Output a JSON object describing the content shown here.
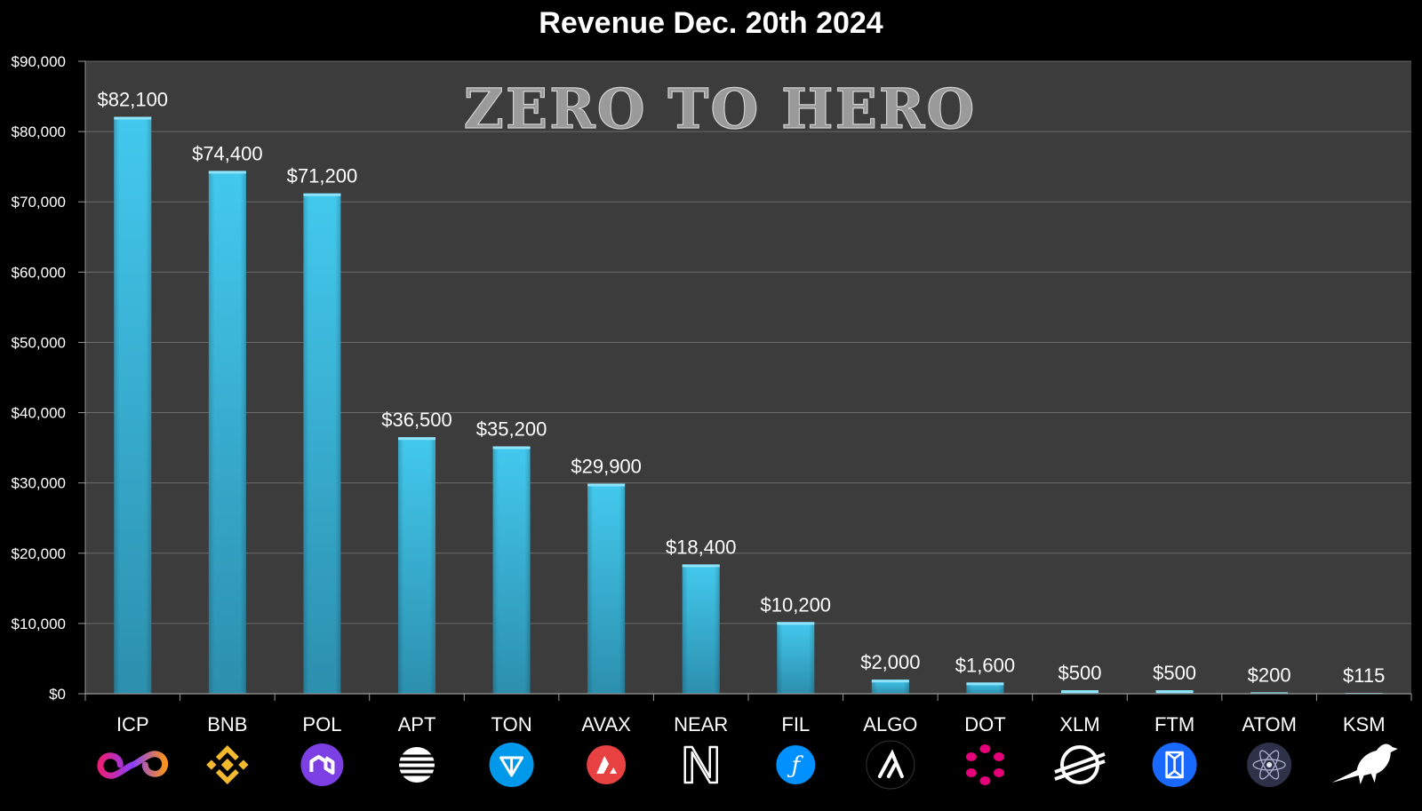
{
  "chart_data": {
    "type": "bar",
    "title": "Revenue Dec. 20th 2024",
    "watermark": "ZERO TO HERO",
    "xlabel": "",
    "ylabel": "",
    "ylim": [
      0,
      90000
    ],
    "yticks": [
      0,
      10000,
      20000,
      30000,
      40000,
      50000,
      60000,
      70000,
      80000,
      90000
    ],
    "ytick_labels": [
      "$0",
      "$10,000",
      "$20,000",
      "$30,000",
      "$40,000",
      "$50,000",
      "$60,000",
      "$70,000",
      "$80,000",
      "$90,000"
    ],
    "grid": true,
    "legend": "none",
    "categories": [
      "ICP",
      "BNB",
      "POL",
      "APT",
      "TON",
      "AVAX",
      "NEAR",
      "FIL",
      "ALGO",
      "DOT",
      "XLM",
      "FTM",
      "ATOM",
      "KSM"
    ],
    "values": [
      82100,
      74400,
      71200,
      36500,
      35200,
      29900,
      18400,
      10200,
      2000,
      1600,
      500,
      500,
      200,
      115
    ],
    "data_labels": [
      "$82,100",
      "$74,400",
      "$71,200",
      "$36,500",
      "$35,200",
      "$29,900",
      "$18,400",
      "$10,200",
      "$2,000",
      "$1,600",
      "$500",
      "$500",
      "$200",
      "$115"
    ],
    "icons": [
      "icp-infinity-icon",
      "bnb-diamond-icon",
      "pol-link-icon",
      "apt-lines-icon",
      "ton-triangle-icon",
      "avax-triangle-icon",
      "near-n-icon",
      "fil-f-icon",
      "algo-a-icon",
      "dot-ring-icon",
      "xlm-rocket-icon",
      "ftm-cube-icon",
      "atom-orbit-icon",
      "ksm-bird-icon"
    ],
    "colors": {
      "background": "#000000",
      "plot_area": "#3c3c3c",
      "bar": "#37b3d8",
      "gridline": "#6a6a6a"
    }
  }
}
